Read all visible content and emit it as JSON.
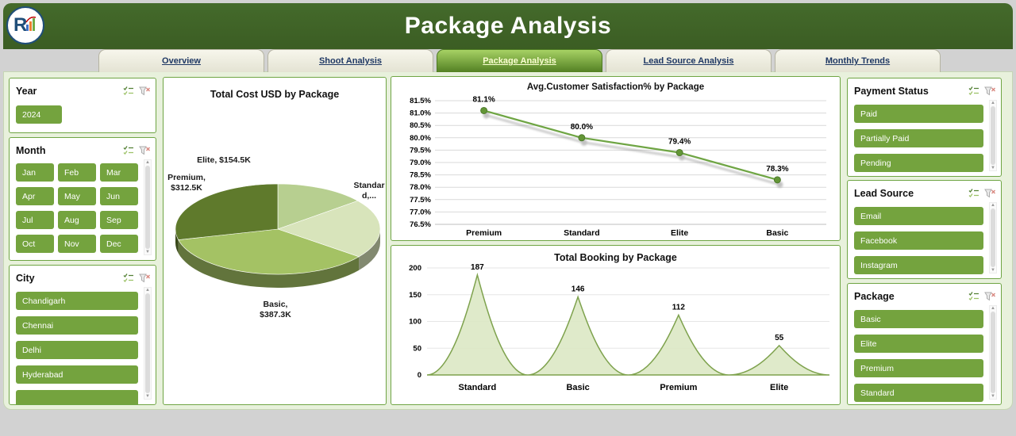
{
  "app": {
    "title": "Package Analysis"
  },
  "colors": {
    "header_green": "#3b5d23",
    "content_bg": "#e8f1dc",
    "panel_border": "#6fa544",
    "slicer_button": "#74a33e",
    "tab_active_top": "#a6d164",
    "tab_active_bottom": "#538023"
  },
  "tabs": [
    {
      "label": "Overview",
      "active": false
    },
    {
      "label": "Shoot Analysis",
      "active": false
    },
    {
      "label": "Package Analysis",
      "active": true
    },
    {
      "label": "Lead Source Analysis",
      "active": false
    },
    {
      "label": "Monthly Trends",
      "active": false
    }
  ],
  "slicers": {
    "year": {
      "title": "Year",
      "items": [
        "2024"
      ],
      "icons": [
        "multi-select",
        "clear-filter"
      ]
    },
    "month": {
      "title": "Month",
      "items": [
        "Jan",
        "Feb",
        "Mar",
        "Apr",
        "May",
        "Jun",
        "Jul",
        "Aug",
        "Sep",
        "Oct",
        "Nov",
        "Dec"
      ],
      "icons": [
        "multi-select",
        "clear-filter"
      ]
    },
    "city": {
      "title": "City",
      "items": [
        "Chandigarh",
        "Chennai",
        "Delhi",
        "Hyderabad"
      ],
      "more_below": true,
      "icons": [
        "multi-select",
        "clear-filter"
      ]
    },
    "payment_status": {
      "title": "Payment Status",
      "items": [
        "Paid",
        "Partially Paid",
        "Pending"
      ],
      "icons": [
        "multi-select",
        "clear-filter"
      ]
    },
    "lead_source": {
      "title": "Lead Source",
      "items": [
        "Email",
        "Facebook",
        "Instagram"
      ],
      "icons": [
        "multi-select",
        "clear-filter"
      ]
    },
    "package": {
      "title": "Package",
      "items": [
        "Basic",
        "Elite",
        "Premium",
        "Standard"
      ],
      "icons": [
        "multi-select",
        "clear-filter"
      ]
    }
  },
  "chart_data": [
    {
      "type": "pie",
      "title": "Total Cost USD by Package",
      "labels": [
        "Elite",
        "Standard",
        "Basic",
        "Premium"
      ],
      "values_usd_k": [
        154.5,
        230.0,
        387.3,
        312.5
      ],
      "standard_value_estimated": true,
      "point_labels": [
        "Elite, $154.5K",
        "Standar d,...",
        "Basic, $387.3K",
        "Premium, $312.5K"
      ],
      "colors": [
        "#b7cf90",
        "#d8e4bb",
        "#a4c264",
        "#5f7a2c"
      ]
    },
    {
      "type": "line",
      "title": "Avg.Customer Satisfaction% by Package",
      "categories": [
        "Premium",
        "Standard",
        "Elite",
        "Basic"
      ],
      "values": [
        81.1,
        80.0,
        79.4,
        78.3
      ],
      "data_labels": [
        "81.1%",
        "80.0%",
        "79.4%",
        "78.3%"
      ],
      "ylim": [
        76.5,
        81.5
      ],
      "ytick_labels": [
        "81.5%",
        "81.0%",
        "80.5%",
        "80.0%",
        "79.5%",
        "79.0%",
        "78.5%",
        "78.0%",
        "77.5%",
        "77.0%",
        "76.5%"
      ],
      "line_color": "#6fa544",
      "marker_color": "#639636"
    },
    {
      "type": "area",
      "title": "Total Booking by Package",
      "categories": [
        "Standard",
        "Basic",
        "Premium",
        "Elite"
      ],
      "values": [
        187,
        146,
        112,
        55
      ],
      "data_labels": [
        "187",
        "146",
        "112",
        "55"
      ],
      "ylim": [
        0,
        200
      ],
      "ytick_labels": [
        "0",
        "50",
        "100",
        "150",
        "200"
      ],
      "fill_color": "#dce8c5",
      "line_color": "#7ea24d"
    }
  ]
}
